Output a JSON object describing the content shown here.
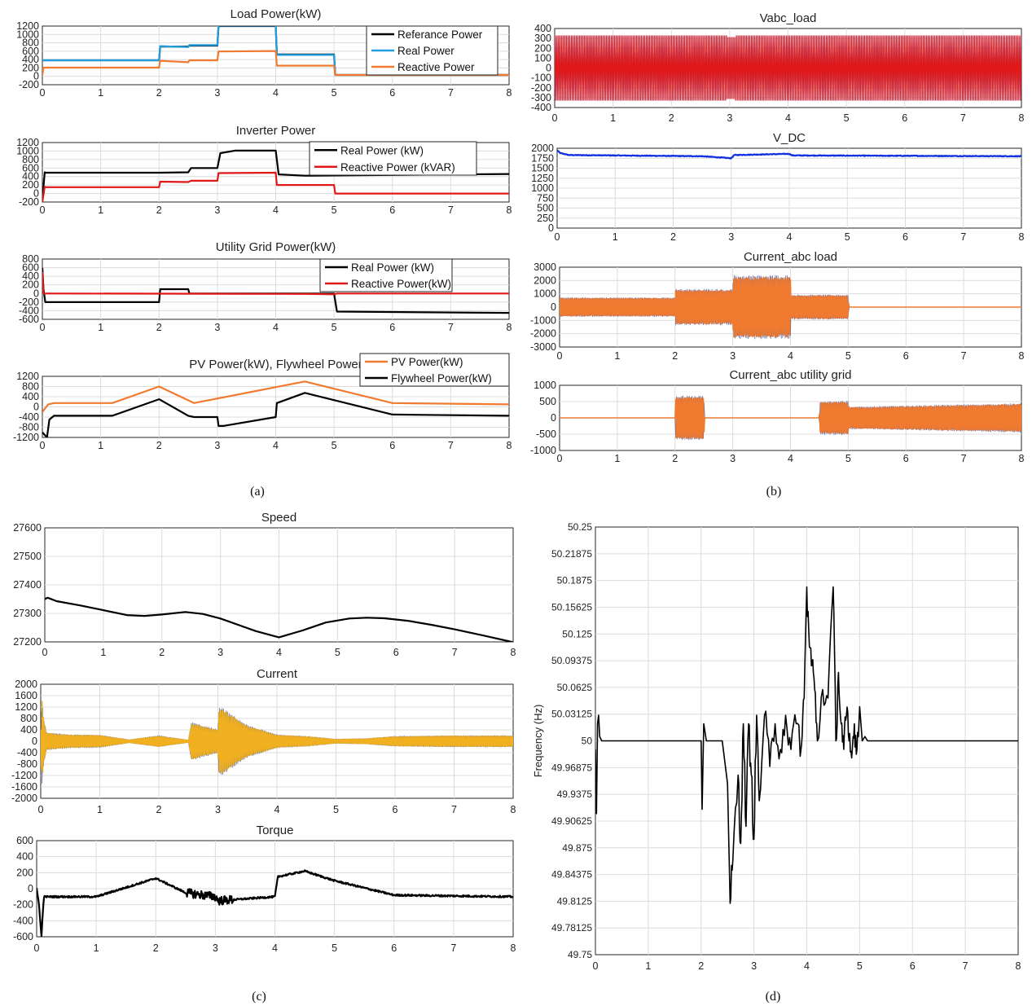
{
  "figure": {
    "panel_labels": [
      "(a)",
      "(b)",
      "(c)",
      "(d)"
    ]
  },
  "chart_data": [
    {
      "id": "a1",
      "type": "line",
      "title": "Load Power(kW)",
      "xlim": [
        0,
        8
      ],
      "ylim": [
        -200,
        1000
      ],
      "xticks": [
        "0",
        "1",
        "2",
        "3",
        "4",
        "5",
        "6",
        "7",
        "8"
      ],
      "yticks": [
        "1200",
        "1000",
        "800",
        "600",
        "400",
        "200",
        "0",
        "-200"
      ],
      "grid": true,
      "legend_position": "top-right",
      "series": [
        {
          "name": "Referance Power",
          "color": "#000000",
          "x": [
            0,
            0.02,
            2.0,
            2.02,
            2.5,
            2.52,
            3.0,
            3.02,
            4.0,
            4.02,
            5.0,
            5.02,
            8.0
          ],
          "y": [
            300,
            300,
            300,
            580,
            580,
            600,
            600,
            1000,
            1000,
            420,
            420,
            0,
            0
          ]
        },
        {
          "name": "Real Power",
          "color": "#1f9ee0",
          "x": [
            0,
            0.02,
            2.0,
            2.02,
            2.5,
            2.52,
            3.0,
            3.02,
            4.0,
            4.02,
            5.0,
            5.02,
            8.0
          ],
          "y": [
            300,
            300,
            300,
            590,
            570,
            610,
            610,
            1010,
            1010,
            410,
            410,
            0,
            0
          ]
        },
        {
          "name": "Reactive Power",
          "color": "#f07a30",
          "x": [
            0,
            0.02,
            2.0,
            2.02,
            2.5,
            2.52,
            3.0,
            3.02,
            4.0,
            4.02,
            5.0,
            5.02,
            8.0
          ],
          "y": [
            0,
            150,
            150,
            290,
            260,
            300,
            300,
            480,
            490,
            190,
            190,
            0,
            0
          ]
        }
      ]
    },
    {
      "id": "a2",
      "type": "line",
      "title": "Inverter Power",
      "xlim": [
        0,
        8
      ],
      "ylim": [
        -200,
        1200
      ],
      "xticks": [
        "0",
        "1",
        "2",
        "3",
        "4",
        "5",
        "6",
        "7",
        "8"
      ],
      "yticks": [
        "1200",
        "1000",
        "800",
        "600",
        "400",
        "200",
        "0",
        "-200"
      ],
      "grid": true,
      "legend_position": "top-right",
      "series": [
        {
          "name": "Real Power (kW)",
          "color": "#000000",
          "x": [
            0,
            0.04,
            0.06,
            2.0,
            2.02,
            2.5,
            2.55,
            3.0,
            3.05,
            3.3,
            4.0,
            4.05,
            4.5,
            8.0
          ],
          "y": [
            -150,
            500,
            490,
            490,
            490,
            500,
            600,
            600,
            950,
            1010,
            1010,
            450,
            420,
            460
          ]
        },
        {
          "name": "Reactive Power (kVAR)",
          "color": "#e01818",
          "x": [
            0,
            0.04,
            0.06,
            2.0,
            2.02,
            2.5,
            2.55,
            3.0,
            3.02,
            4.0,
            4.02,
            5.0,
            5.02,
            8.0
          ],
          "y": [
            -200,
            160,
            150,
            150,
            280,
            270,
            300,
            300,
            480,
            490,
            200,
            200,
            0,
            0
          ]
        }
      ]
    },
    {
      "id": "a3",
      "type": "line",
      "title": "Utility Grid Power(kW)",
      "xlim": [
        0,
        8
      ],
      "ylim": [
        -600,
        800
      ],
      "xticks": [
        "0",
        "1",
        "2",
        "3",
        "4",
        "5",
        "6",
        "7",
        "8"
      ],
      "yticks": [
        "800",
        "600",
        "400",
        "200",
        "0",
        "-200",
        "-400",
        "-600"
      ],
      "grid": true,
      "legend_position": "top-right",
      "series": [
        {
          "name": "Real Power (kW)",
          "color": "#000000",
          "x": [
            0,
            0.02,
            0.05,
            2.0,
            2.02,
            2.5,
            2.52,
            5.0,
            5.05,
            8.0
          ],
          "y": [
            600,
            100,
            -200,
            -200,
            100,
            100,
            0,
            0,
            -420,
            -450
          ]
        },
        {
          "name": "Reactive Power(kW)",
          "color": "#e01818",
          "x": [
            0,
            0.02,
            0.06,
            4.5,
            5.0,
            5.05,
            8.0
          ],
          "y": [
            500,
            0,
            0,
            -10,
            -20,
            0,
            0
          ]
        }
      ]
    },
    {
      "id": "a4",
      "type": "line",
      "title": "PV Power(kW), Flywheel Power",
      "xlim": [
        0,
        8
      ],
      "ylim": [
        -1200,
        1200
      ],
      "xticks": [
        "0",
        "1",
        "2",
        "3",
        "4",
        "5",
        "6",
        "7",
        "8"
      ],
      "yticks": [
        "1200",
        "800",
        "400",
        "0",
        "-400",
        "-800",
        "-1200"
      ],
      "grid": true,
      "legend_position": "top-right",
      "series": [
        {
          "name": "PV Power(kW)",
          "color": "#f07a30",
          "x": [
            0,
            0.1,
            0.2,
            1.2,
            2.0,
            2.6,
            4.5,
            6.0,
            8.0
          ],
          "y": [
            -200,
            100,
            150,
            150,
            800,
            150,
            1000,
            150,
            100
          ]
        },
        {
          "name": "Flywheel Power(kW)",
          "color": "#000000",
          "x": [
            0,
            0.08,
            0.12,
            0.2,
            1.2,
            2.0,
            2.5,
            2.6,
            3.0,
            3.02,
            3.1,
            4.0,
            4.02,
            4.5,
            6.0,
            8.0
          ],
          "y": [
            -1000,
            -1200,
            -500,
            -350,
            -350,
            300,
            -350,
            -400,
            -400,
            -750,
            -750,
            -400,
            150,
            550,
            -300,
            -350
          ]
        }
      ]
    },
    {
      "id": "b1",
      "type": "line",
      "title": "Vabc_load",
      "xlim": [
        0,
        8
      ],
      "ylim": [
        -400,
        400
      ],
      "xticks": [
        "0",
        "1",
        "2",
        "3",
        "4",
        "5",
        "6",
        "7",
        "8"
      ],
      "yticks": [
        "400",
        "300",
        "200",
        "100",
        "0",
        "-100",
        "-200",
        "-300",
        "-400"
      ],
      "grid": true,
      "series": [
        {
          "color": "#e01818",
          "x": [
            0,
            8
          ],
          "y": [
            330,
            330
          ],
          "note_band_amplitude": 330
        }
      ]
    },
    {
      "id": "b2",
      "type": "line",
      "title": "V_DC",
      "xlim": [
        0,
        8
      ],
      "ylim": [
        0,
        2000
      ],
      "xticks": [
        "0",
        "1",
        "2",
        "3",
        "4",
        "5",
        "6",
        "7",
        "8"
      ],
      "yticks": [
        "2000",
        "1750",
        "1500",
        "1250",
        "1000",
        "750",
        "500",
        "250",
        "0"
      ],
      "grid": true,
      "series": [
        {
          "color": "#1030e0",
          "x": [
            0,
            0.05,
            0.2,
            2.5,
            3.0,
            3.05,
            4.0,
            4.05,
            8.0
          ],
          "y": [
            1950,
            1880,
            1830,
            1800,
            1750,
            1830,
            1860,
            1820,
            1800
          ]
        }
      ]
    },
    {
      "id": "b3",
      "type": "area",
      "title": "Current_abc load",
      "xlim": [
        0,
        8
      ],
      "ylim": [
        -3000,
        3000
      ],
      "xticks": [
        "0",
        "1",
        "2",
        "3",
        "4",
        "5",
        "6",
        "7",
        "8"
      ],
      "yticks": [
        "3000",
        "2000",
        "1000",
        "0",
        "-1000",
        "-2000",
        "-3000"
      ],
      "grid": true,
      "series": [
        {
          "color": "#f07a30",
          "x": [
            0,
            2,
            2.01,
            3,
            3.01,
            4,
            4.01,
            5,
            5.01,
            8
          ],
          "y": [
            700,
            700,
            1300,
            1300,
            2300,
            2300,
            900,
            900,
            0,
            0
          ]
        }
      ]
    },
    {
      "id": "b4",
      "type": "area",
      "title": "Current_abc utility grid",
      "xlim": [
        0,
        8
      ],
      "ylim": [
        -1000,
        1000
      ],
      "xticks": [
        "0",
        "1",
        "2",
        "3",
        "4",
        "5",
        "6",
        "7",
        "8"
      ],
      "yticks": [
        "1000",
        "500",
        "0",
        "-500",
        "-1000"
      ],
      "grid": true,
      "series": [
        {
          "color": "#f07a30",
          "x": [
            0,
            2,
            2.01,
            2.5,
            2.51,
            4.5,
            4.51,
            5,
            5.01,
            8
          ],
          "y": [
            0,
            0,
            650,
            650,
            0,
            0,
            500,
            500,
            330,
            430
          ]
        }
      ]
    },
    {
      "id": "c1",
      "type": "line",
      "title": "Speed",
      "xlim": [
        0,
        8
      ],
      "ylim": [
        27200,
        27600
      ],
      "xticks": [
        "0",
        "1",
        "2",
        "3",
        "4",
        "5",
        "6",
        "7",
        "8"
      ],
      "yticks": [
        "27600",
        "27500",
        "27400",
        "27300",
        "27200"
      ],
      "grid": true,
      "series": [
        {
          "color": "#000000",
          "x": [
            0,
            0.05,
            0.2,
            0.6,
            1.0,
            1.4,
            1.7,
            2.0,
            2.4,
            2.7,
            3.0,
            3.3,
            3.6,
            4.0,
            4.4,
            4.8,
            5.2,
            5.5,
            5.8,
            6.2,
            6.6,
            7.0,
            7.5,
            8.0
          ],
          "y": [
            27350,
            27355,
            27343,
            27328,
            27311,
            27294,
            27291,
            27296,
            27305,
            27298,
            27282,
            27260,
            27238,
            27216,
            27240,
            27268,
            27282,
            27285,
            27283,
            27274,
            27260,
            27244,
            27222,
            27199
          ]
        }
      ]
    },
    {
      "id": "c2",
      "type": "area",
      "title": "Current",
      "xlim": [
        0,
        8
      ],
      "ylim": [
        -2000,
        2000
      ],
      "xticks": [
        "0",
        "1",
        "2",
        "3",
        "4",
        "5",
        "6",
        "7",
        "8"
      ],
      "yticks": [
        "2000",
        "1600",
        "1200",
        "800",
        "400",
        "0",
        "-400",
        "-800",
        "-1200",
        "-1600",
        "-2000"
      ],
      "grid": true,
      "series": [
        {
          "color": "#f0b020",
          "x": [
            0,
            0.02,
            0.05,
            0.1,
            0.5,
            1.0,
            1.5,
            2.0,
            2.5,
            2.55,
            3.0,
            3.02,
            3.5,
            4.0,
            4.5,
            5.0,
            5.5,
            6.0,
            7.0,
            8.0
          ],
          "y": [
            400,
            1500,
            800,
            300,
            230,
            220,
            60,
            200,
            50,
            650,
            400,
            1200,
            550,
            230,
            180,
            80,
            100,
            180,
            200,
            200
          ]
        }
      ]
    },
    {
      "id": "c3",
      "type": "line",
      "title": "Torque",
      "xlim": [
        0,
        8
      ],
      "ylim": [
        -600,
        600
      ],
      "xticks": [
        "0",
        "1",
        "2",
        "3",
        "4",
        "5",
        "6",
        "7",
        "8"
      ],
      "yticks": [
        "600",
        "400",
        "200",
        "0",
        "-200",
        "-400",
        "-600"
      ],
      "grid": true,
      "series": [
        {
          "color": "#000000",
          "x": [
            0,
            0.04,
            0.08,
            0.12,
            0.2,
            1.0,
            2.0,
            2.5,
            3.0,
            3.05,
            4.0,
            4.05,
            4.5,
            5.0,
            6.0,
            8.0
          ],
          "y": [
            0,
            -200,
            -600,
            -100,
            -100,
            -100,
            130,
            -50,
            -100,
            -150,
            -100,
            150,
            220,
            100,
            -80,
            -100
          ]
        }
      ]
    },
    {
      "id": "d1",
      "type": "line",
      "title": "",
      "ylabel": "Frequency (Hz)",
      "xlim": [
        0,
        8
      ],
      "ylim": [
        49.75,
        50.25
      ],
      "xticks": [
        "0",
        "1",
        "2",
        "3",
        "4",
        "5",
        "6",
        "7",
        "8"
      ],
      "yticks": [
        "50.25",
        "50.21875",
        "50.1875",
        "50.15625",
        "50.125",
        "50.09375",
        "50.0625",
        "50.03125",
        "50",
        "49.96875",
        "49.9375",
        "49.90625",
        "49.875",
        "49.84375",
        "49.8125",
        "49.78125",
        "49.75"
      ],
      "grid": true,
      "series": [
        {
          "color": "#000000",
          "x": [
            0,
            0.02,
            0.04,
            0.06,
            0.08,
            0.12,
            0.2,
            2.0,
            2.02,
            2.05,
            2.1,
            2.4,
            2.5,
            2.55,
            2.6,
            2.7,
            2.75,
            2.8,
            2.85,
            2.9,
            2.95,
            3.0,
            3.05,
            3.1,
            3.2,
            3.3,
            3.4,
            3.5,
            3.6,
            3.7,
            3.8,
            3.9,
            3.95,
            4.0,
            4.05,
            4.1,
            4.15,
            4.2,
            4.3,
            4.4,
            4.5,
            4.55,
            4.6,
            4.65,
            4.7,
            4.75,
            4.8,
            4.85,
            4.9,
            4.95,
            5.0,
            5.05,
            5.1,
            5.15,
            5.3,
            8.0
          ],
          "y": [
            49.99,
            49.915,
            50.02,
            50.03,
            50.005,
            50.0,
            50.0,
            50.0,
            49.92,
            50.02,
            50.0,
            50.0,
            49.95,
            49.81,
            49.86,
            49.96,
            49.88,
            50.02,
            49.9,
            50.02,
            49.96,
            49.885,
            50.03,
            49.93,
            50.03,
            49.97,
            50.02,
            49.99,
            50.03,
            49.99,
            50.02,
            49.995,
            50.05,
            50.18,
            50.11,
            50.09,
            50.06,
            50.0,
            50.06,
            50.05,
            50.18,
            50.0,
            50.08,
            50.02,
            49.99,
            50.03,
            50.0,
            49.98,
            50.02,
            49.99,
            50.04,
            50.0,
            50.005,
            50.0,
            50.0,
            50.0
          ]
        }
      ]
    }
  ]
}
